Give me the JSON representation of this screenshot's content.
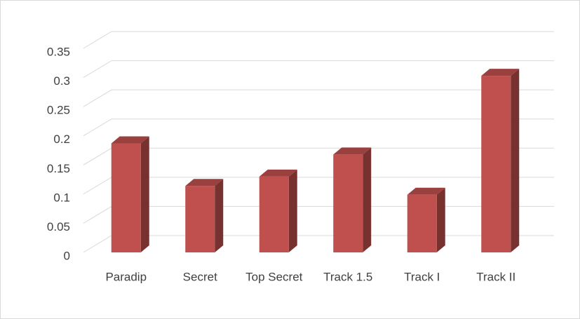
{
  "chart_data": {
    "type": "bar3d",
    "categories": [
      "Paradip",
      "Secret",
      "Top Secret",
      "Track 1.5",
      "Track I",
      "Track II"
    ],
    "values": [
      0.187,
      0.114,
      0.13,
      0.168,
      0.099,
      0.303
    ],
    "color": "#c0504d",
    "ylim": [
      0,
      0.35
    ],
    "yticks": [
      0,
      0.05,
      0.1,
      0.15,
      0.2,
      0.25,
      0.3,
      0.35
    ],
    "grid": true
  }
}
